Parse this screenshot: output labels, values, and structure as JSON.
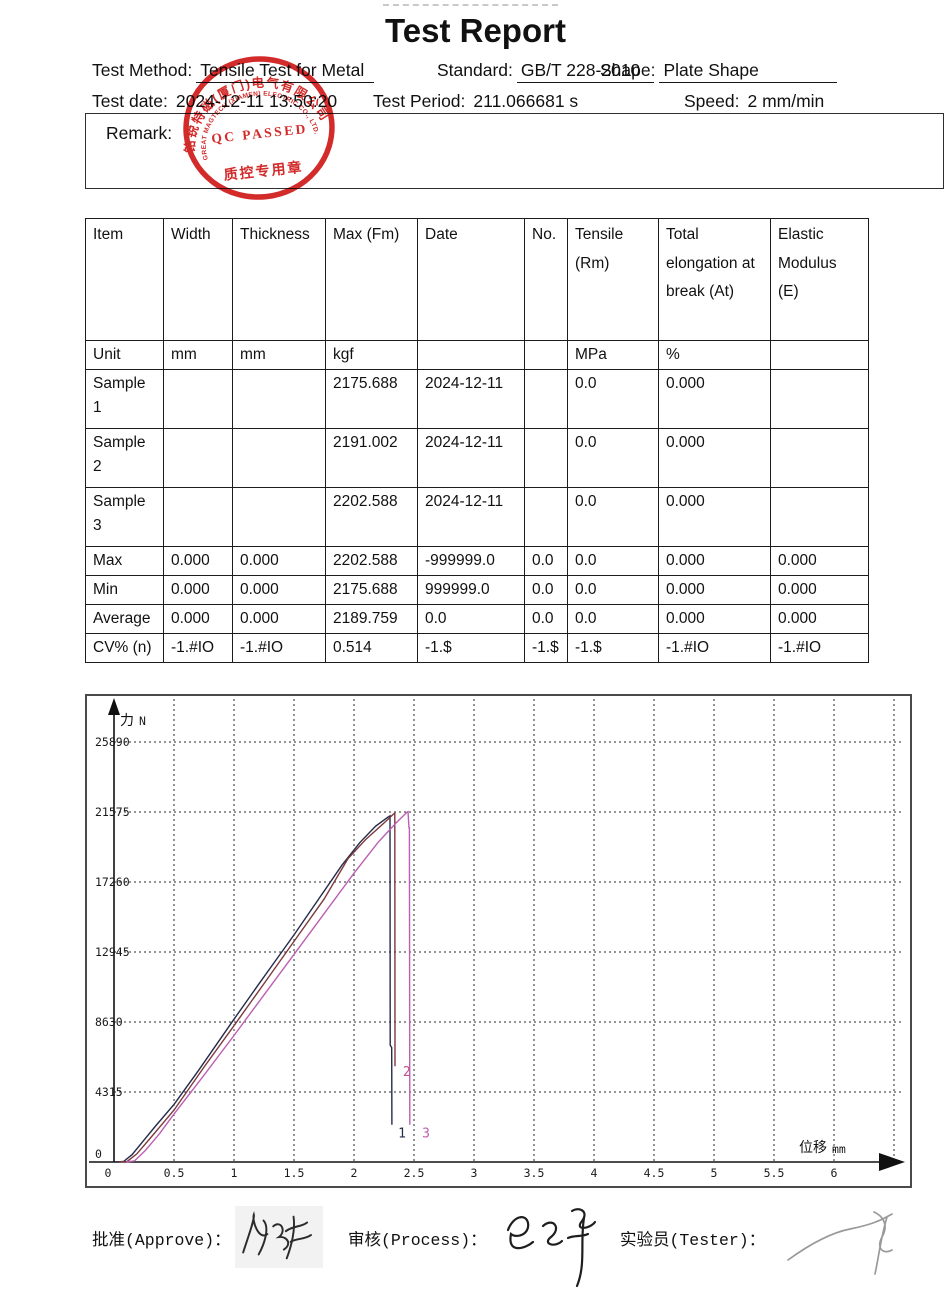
{
  "title": "Test Report",
  "header": {
    "fields_row1": [
      {
        "label": "Test Method:",
        "value": "Tensile Test for Metal"
      },
      {
        "label": "Standard:",
        "value": "GB/T 228-2010"
      },
      {
        "label": "Shape:",
        "value": "Plate Shape"
      }
    ],
    "fields_row2": [
      {
        "label": "Test date:",
        "value": "2024-12-11 13:50:20"
      },
      {
        "label": "Test Period:",
        "value": "211.066681 s"
      },
      {
        "label": "Speed:",
        "value": "2 mm/min"
      }
    ],
    "remark_label": "Remark:"
  },
  "stamp": {
    "company_cn": "铭锐特磁(厦门)电气有限公司",
    "company_en": "GREAT MAGTECH (XIAMEN) ELECTRIC CO., LTD.",
    "center_text": "QC PASSED",
    "bottom_text": "质控专用章",
    "color": "#cf1717"
  },
  "table": {
    "columns": [
      "Item",
      "Width",
      "Thickness",
      "Max (Fm)",
      "Date",
      "No.",
      "Tensile (Rm)",
      "Total elongation at break (At)",
      "Elastic Modulus (E)"
    ],
    "rows": [
      [
        "Unit",
        "mm",
        "mm",
        "kgf",
        "",
        "",
        "MPa",
        "%",
        ""
      ],
      [
        "Sample 1",
        "",
        "",
        "2175.688",
        "2024-12-11",
        "",
        "0.0",
        "0.000",
        ""
      ],
      [
        "Sample 2",
        "",
        "",
        "2191.002",
        "2024-12-11",
        "",
        "0.0",
        "0.000",
        ""
      ],
      [
        "Sample 3",
        "",
        "",
        "2202.588",
        "2024-12-11",
        "",
        "0.0",
        "0.000",
        ""
      ],
      [
        "Max",
        "0.000",
        "0.000",
        "2202.588",
        "-999999.0",
        "0.0",
        "0.0",
        "0.000",
        "0.000"
      ],
      [
        "Min",
        "0.000",
        "0.000",
        "2175.688",
        "999999.0",
        "0.0",
        "0.0",
        "0.000",
        "0.000"
      ],
      [
        "Average",
        "0.000",
        "0.000",
        "2189.759",
        "0.0",
        "0.0",
        "0.0",
        "0.000",
        "0.000"
      ],
      [
        "CV% (n)",
        "-1.#IO",
        "-1.#IO",
        "0.514",
        "-1.$",
        "-1.$",
        "-1.$",
        "-1.#IO",
        "-1.#IO"
      ]
    ]
  },
  "chart_data": {
    "type": "line",
    "title": "",
    "ylabel_cn": "力",
    "ylabel_unit": "N",
    "xlabel_cn": "位移",
    "xlabel_unit": "mm",
    "xlim": [
      0,
      6.6
    ],
    "ylim": [
      0,
      27500
    ],
    "x_ticks": [
      0,
      0.5,
      1,
      1.5,
      2,
      2.5,
      3,
      3.5,
      4,
      4.5,
      5,
      5.5,
      6
    ],
    "y_ticks": [
      0,
      4315,
      8630,
      12945,
      17260,
      21575,
      25890
    ],
    "grid": true,
    "legend_position": "none",
    "series": [
      {
        "name": "1",
        "color": "#232b4a",
        "points": [
          [
            0.02,
            0
          ],
          [
            0.08,
            30
          ],
          [
            0.15,
            450
          ],
          [
            0.25,
            1350
          ],
          [
            0.35,
            2250
          ],
          [
            0.5,
            3550
          ],
          [
            0.7,
            5600
          ],
          [
            0.85,
            7200
          ],
          [
            1.0,
            8800
          ],
          [
            1.2,
            10900
          ],
          [
            1.35,
            12450
          ],
          [
            1.5,
            14000
          ],
          [
            1.7,
            16150
          ],
          [
            1.9,
            18300
          ],
          [
            2.05,
            19700
          ],
          [
            2.18,
            20700
          ],
          [
            2.28,
            21250
          ],
          [
            2.3,
            21337
          ],
          [
            2.302,
            7200
          ],
          [
            2.314,
            7050
          ],
          [
            2.316,
            2300
          ]
        ],
        "max_kgf": 2175.688
      },
      {
        "name": "2",
        "color": "#7d3a3c",
        "points": [
          [
            0.04,
            0
          ],
          [
            0.11,
            40
          ],
          [
            0.19,
            500
          ],
          [
            0.3,
            1450
          ],
          [
            0.42,
            2500
          ],
          [
            0.5,
            3200
          ],
          [
            0.75,
            5850
          ],
          [
            1.0,
            8400
          ],
          [
            1.25,
            11000
          ],
          [
            1.5,
            13600
          ],
          [
            1.75,
            16200
          ],
          [
            1.95,
            18700
          ],
          [
            2.1,
            19900
          ],
          [
            2.25,
            20900
          ],
          [
            2.33,
            21450
          ],
          [
            2.34,
            21487
          ],
          [
            2.342,
            5900
          ]
        ],
        "max_kgf": 2191.002
      },
      {
        "name": "3",
        "color": "#bc5fb4",
        "points": [
          [
            0.1,
            0
          ],
          [
            0.17,
            60
          ],
          [
            0.26,
            700
          ],
          [
            0.38,
            1750
          ],
          [
            0.5,
            2950
          ],
          [
            0.75,
            5350
          ],
          [
            1.0,
            7800
          ],
          [
            1.25,
            10300
          ],
          [
            1.5,
            12800
          ],
          [
            1.75,
            15300
          ],
          [
            2.0,
            17800
          ],
          [
            2.2,
            19700
          ],
          [
            2.35,
            20900
          ],
          [
            2.44,
            21550
          ],
          [
            2.45,
            21601
          ],
          [
            2.458,
            20600
          ],
          [
            2.462,
            20600
          ],
          [
            2.465,
            2300
          ]
        ],
        "max_kgf": 2202.588
      }
    ],
    "curve_labels": [
      {
        "text": "1",
        "x": 2.4,
        "y": 1500,
        "color": "#232b4a"
      },
      {
        "text": "2",
        "x": 2.44,
        "y": 5300,
        "color": "#c0508a"
      },
      {
        "text": "3",
        "x": 2.6,
        "y": 1500,
        "color": "#bc5fb4"
      }
    ]
  },
  "footer": {
    "signers": [
      {
        "label": "批准(Approve)："
      },
      {
        "label": "审核(Process)："
      },
      {
        "label": "实验员(Tester)："
      }
    ]
  }
}
